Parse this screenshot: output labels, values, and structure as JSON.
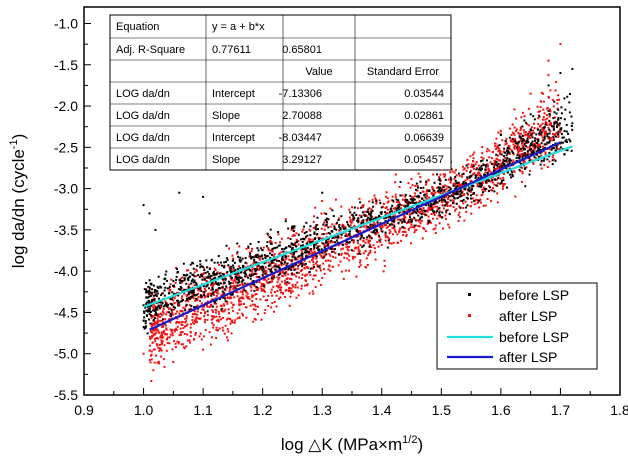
{
  "chart_data": {
    "type": "scatter",
    "xlabel": "log △K (MPa×m1/2)",
    "xlabel_parts": {
      "main": "log △K (MPa×m",
      "sup": "1/2",
      "end": ")"
    },
    "ylabel": "log da/dn (cycle-1)",
    "ylabel_parts": {
      "main": "log da/dn (cycle",
      "sup": "-1",
      "end": ")"
    },
    "xlim": [
      0.9,
      1.8
    ],
    "ylim": [
      -5.5,
      -0.8
    ],
    "x_ticks": [
      "0.9",
      "1.0",
      "1.1",
      "1.2",
      "1.3",
      "1.4",
      "1.5",
      "1.6",
      "1.7",
      "1.8"
    ],
    "y_ticks": [
      "-1.0",
      "-1.5",
      "-2.0",
      "-2.5",
      "-3.0",
      "-3.5",
      "-4.0",
      "-4.5",
      "-5.0",
      "-5.5"
    ],
    "grid": false,
    "legend_position": "bottom-right",
    "series": [
      {
        "name": "before LSP",
        "kind": "scatter",
        "color": "#000000",
        "x_range": [
          1.0,
          1.72
        ],
        "fit_intercept": -7.13306,
        "fit_slope": 2.70088,
        "scatter_points": [
          [
            1.0,
            -3.2
          ],
          [
            1.01,
            -3.3
          ],
          [
            1.02,
            -3.5
          ],
          [
            1.06,
            -3.05
          ],
          [
            1.1,
            -3.1
          ],
          [
            1.3,
            -3.05
          ],
          [
            1.55,
            -2.85
          ],
          [
            1.6,
            -2.35
          ],
          [
            1.65,
            -2.1
          ],
          [
            1.68,
            -1.75
          ],
          [
            1.7,
            -1.6
          ],
          [
            1.72,
            -1.55
          ]
        ]
      },
      {
        "name": "after LSP",
        "kind": "scatter",
        "color": "#ee1111",
        "x_range": [
          1.01,
          1.7
        ],
        "fit_intercept": -8.03447,
        "fit_slope": 3.29127,
        "scatter_points": [
          [
            1.0,
            -5.0
          ],
          [
            1.05,
            -5.1
          ],
          [
            1.1,
            -4.95
          ],
          [
            1.3,
            -3.15
          ],
          [
            1.45,
            -2.7
          ],
          [
            1.6,
            -2.3
          ],
          [
            1.65,
            -1.85
          ],
          [
            1.68,
            -1.45
          ],
          [
            1.7,
            -1.25
          ]
        ]
      },
      {
        "name": "before LSP",
        "kind": "line",
        "color": "#22dddd",
        "fit_of": 0
      },
      {
        "name": "after LSP",
        "kind": "line",
        "color": "#1a1acc",
        "fit_of": 1
      }
    ],
    "fit_table": {
      "rows": [
        [
          "Equation",
          "y = a + b*x",
          "",
          ""
        ],
        [
          "Adj. R-Square",
          "0.77611",
          "0.65801",
          ""
        ],
        [
          "",
          "",
          "Value",
          "Standard Error"
        ],
        [
          "LOG da/dn",
          "Intercept",
          "-7.13306",
          "0.03544"
        ],
        [
          "LOG da/dn",
          "Slope",
          "2.70088",
          "0.02861"
        ],
        [
          "LOG da/dn",
          "Intercept",
          "-8.03447",
          "0.06639"
        ],
        [
          "LOG da/dn",
          "Slope",
          "3.29127",
          "0.05457"
        ]
      ]
    }
  }
}
